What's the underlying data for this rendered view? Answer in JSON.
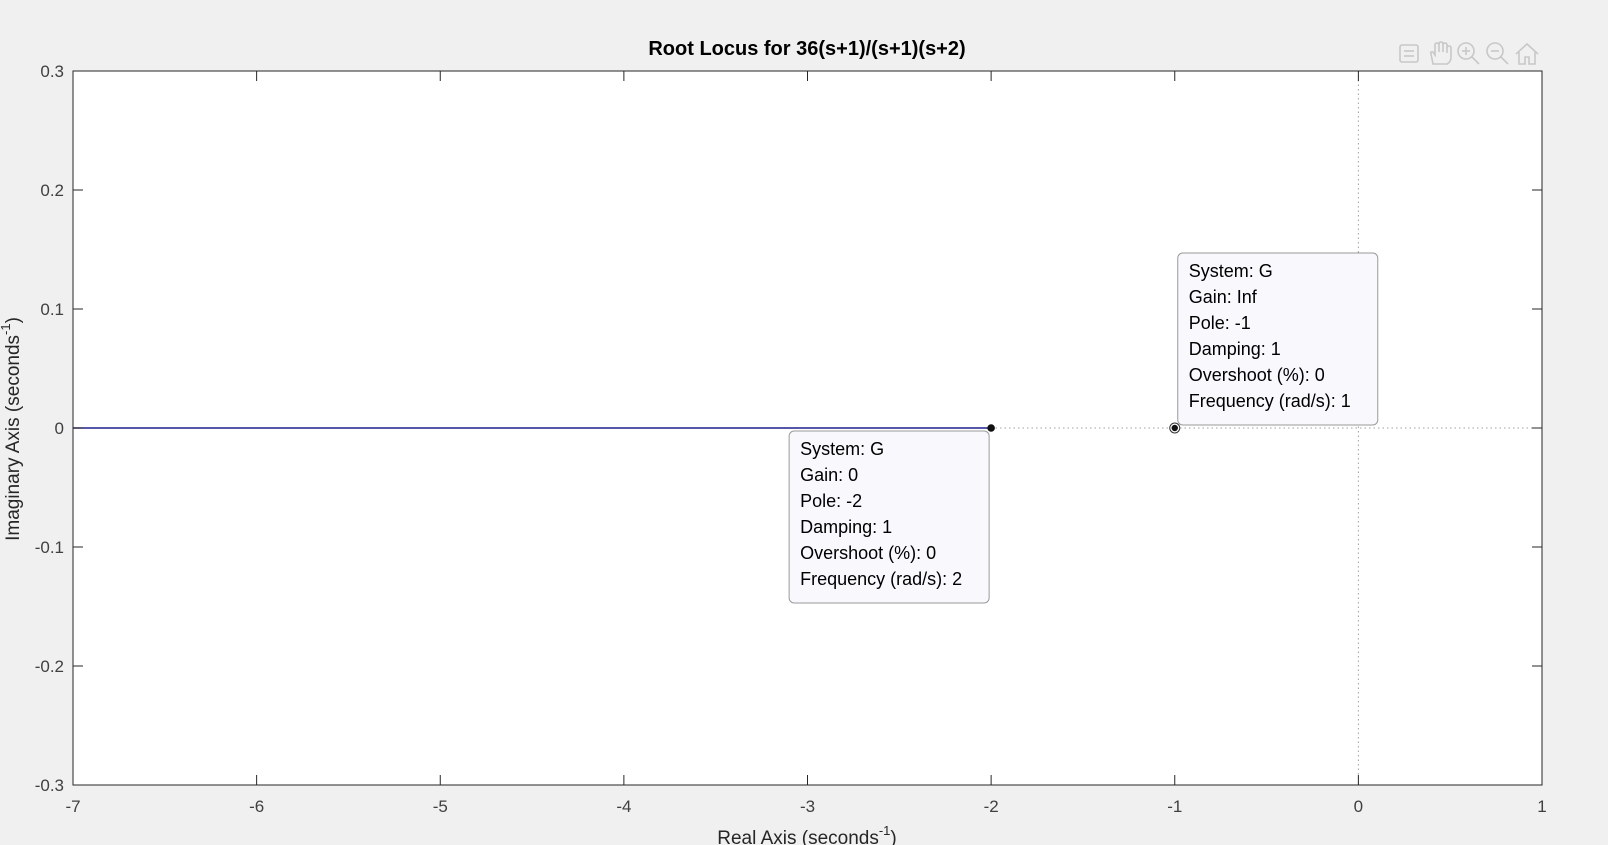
{
  "chart_data": {
    "type": "line",
    "title": "Root Locus for 36(s+1)/(s+1)(s+2)",
    "xlabel": "Real Axis (seconds",
    "ylabel": "Imaginary Axis (seconds",
    "label_exponent": "-1",
    "label_close": ")",
    "xlim": [
      -7,
      1
    ],
    "ylim": [
      -0.3,
      0.3
    ],
    "xticks": [
      -7,
      -6,
      -5,
      -4,
      -3,
      -2,
      -1,
      0,
      1
    ],
    "yticks": [
      -0.3,
      -0.2,
      -0.1,
      0,
      0.1,
      0.2,
      0.3
    ],
    "grid": false,
    "series": [
      {
        "color": "#1f1f8f",
        "x": [
          -2,
          -7
        ],
        "y": [
          0,
          0
        ]
      }
    ],
    "reference_lines": {
      "color": "#a0a0a0",
      "horizontal_y": 0,
      "vertical_x": 0
    },
    "markers": [
      {
        "x": -2,
        "y": 0,
        "style": "filled"
      },
      {
        "x": -1,
        "y": 0,
        "style": "ring"
      }
    ],
    "datatips": [
      {
        "anchor": {
          "x": -2,
          "y": 0
        },
        "lines": [
          "System: G",
          "Gain: 0",
          "Pole: -2",
          "Damping: 1",
          "Overshoot (%): 0",
          "Frequency (rad/s): 2"
        ]
      },
      {
        "anchor": {
          "x": -1,
          "y": 0
        },
        "lines": [
          "System: G",
          "Gain: Inf",
          "Pole: -1",
          "Damping: 1",
          "Overshoot (%): 0",
          "Frequency (rad/s): 1"
        ]
      }
    ]
  },
  "toolbar": {
    "icons": [
      "brush-icon",
      "pan-hand-icon",
      "zoom-in-icon",
      "zoom-out-icon",
      "home-icon"
    ]
  }
}
